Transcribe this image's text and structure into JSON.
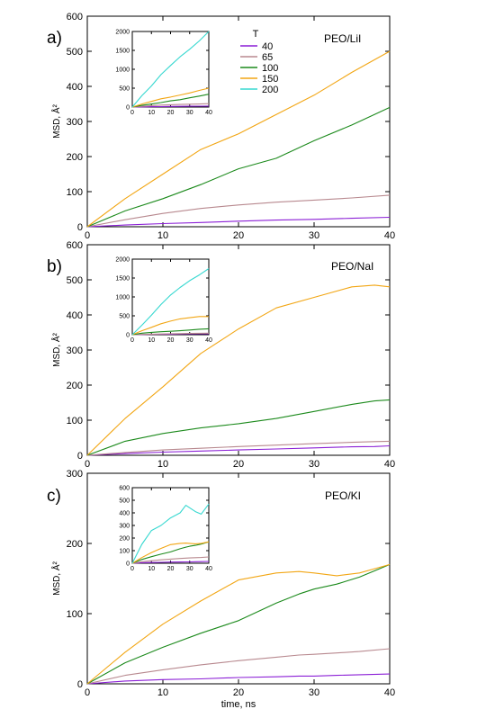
{
  "palette": {
    "T40": "#8b1fd6",
    "T65": "#b8898f",
    "T100": "#1c8a1c",
    "T150": "#f2a614",
    "T200": "#36d8d0"
  },
  "legend": {
    "title": "T",
    "entries": [
      {
        "label": "40",
        "color": "#8b1fd6"
      },
      {
        "label": "65",
        "color": "#b8898f"
      },
      {
        "label": "100",
        "color": "#1c8a1c"
      },
      {
        "label": "150",
        "color": "#f2a614"
      },
      {
        "label": "200",
        "color": "#36d8d0"
      }
    ]
  },
  "chart_data": [
    {
      "type": "line",
      "panel": "a)",
      "title": "PEO/LiI",
      "xlabel": "",
      "ylabel": "MSD, Å²",
      "xlim": [
        0,
        40
      ],
      "ylim": [
        0,
        600
      ],
      "xticks": [
        0,
        10,
        20,
        30,
        40
      ],
      "yticks": [
        0,
        100,
        200,
        300,
        400,
        500,
        600
      ],
      "x": [
        0,
        5,
        10,
        15,
        20,
        25,
        30,
        35,
        40
      ],
      "series": [
        {
          "name": "40",
          "color": "#8b1fd6",
          "values": [
            0,
            5,
            9,
            12,
            16,
            19,
            21,
            24,
            27
          ]
        },
        {
          "name": "65",
          "color": "#b8898f",
          "values": [
            0,
            20,
            38,
            52,
            62,
            70,
            76,
            82,
            90
          ]
        },
        {
          "name": "100",
          "color": "#1c8a1c",
          "values": [
            0,
            45,
            80,
            120,
            165,
            195,
            245,
            290,
            340
          ]
        },
        {
          "name": "150",
          "color": "#f2a614",
          "values": [
            0,
            80,
            150,
            220,
            265,
            320,
            375,
            440,
            500
          ]
        }
      ],
      "inset": {
        "xlim": [
          0,
          40
        ],
        "ylim": [
          0,
          2000
        ],
        "xticks": [
          0,
          10,
          20,
          30,
          40
        ],
        "yticks": [
          0,
          500,
          1000,
          1500,
          2000
        ],
        "x": [
          0,
          5,
          10,
          15,
          20,
          25,
          30,
          35,
          40
        ],
        "series": [
          {
            "name": "40",
            "color": "#8b1fd6",
            "values": [
              0,
              5,
              9,
              12,
              16,
              19,
              21,
              24,
              27
            ]
          },
          {
            "name": "65",
            "color": "#b8898f",
            "values": [
              0,
              20,
              38,
              52,
              62,
              70,
              76,
              82,
              90
            ]
          },
          {
            "name": "100",
            "color": "#1c8a1c",
            "values": [
              0,
              45,
              80,
              120,
              165,
              195,
              245,
              290,
              340
            ]
          },
          {
            "name": "150",
            "color": "#f2a614",
            "values": [
              0,
              80,
              150,
              220,
              265,
              320,
              375,
              440,
              500
            ]
          },
          {
            "name": "200",
            "color": "#36d8d0",
            "values": [
              0,
              300,
              560,
              860,
              1100,
              1330,
              1530,
              1750,
              2000
            ]
          }
        ]
      }
    },
    {
      "type": "line",
      "panel": "b)",
      "title": "PEO/NaI",
      "xlabel": "",
      "ylabel": "MSD, Å²",
      "xlim": [
        0,
        40
      ],
      "ylim": [
        0,
        600
      ],
      "xticks": [
        0,
        10,
        20,
        30,
        40
      ],
      "yticks": [
        0,
        100,
        200,
        300,
        400,
        500,
        600
      ],
      "x": [
        0,
        5,
        10,
        15,
        20,
        25,
        30,
        35,
        38,
        40
      ],
      "series": [
        {
          "name": "40",
          "color": "#8b1fd6",
          "values": [
            0,
            5,
            9,
            12,
            15,
            18,
            21,
            24,
            25,
            27
          ]
        },
        {
          "name": "65",
          "color": "#b8898f",
          "values": [
            0,
            8,
            15,
            20,
            25,
            29,
            33,
            37,
            39,
            40
          ]
        },
        {
          "name": "100",
          "color": "#1c8a1c",
          "values": [
            0,
            40,
            62,
            78,
            90,
            105,
            125,
            145,
            155,
            158
          ]
        },
        {
          "name": "150",
          "color": "#f2a614",
          "values": [
            0,
            105,
            195,
            290,
            360,
            420,
            450,
            480,
            485,
            480
          ]
        }
      ],
      "inset": {
        "xlim": [
          0,
          40
        ],
        "ylim": [
          0,
          2000
        ],
        "xticks": [
          0,
          10,
          20,
          30,
          40
        ],
        "yticks": [
          0,
          500,
          1000,
          1500,
          2000
        ],
        "x": [
          0,
          5,
          10,
          15,
          20,
          25,
          30,
          35,
          40
        ],
        "series": [
          {
            "name": "40",
            "color": "#8b1fd6",
            "values": [
              0,
              5,
              9,
              12,
              15,
              18,
              21,
              24,
              27
            ]
          },
          {
            "name": "65",
            "color": "#b8898f",
            "values": [
              0,
              8,
              15,
              20,
              25,
              29,
              33,
              37,
              40
            ]
          },
          {
            "name": "100",
            "color": "#1c8a1c",
            "values": [
              0,
              40,
              62,
              78,
              90,
              105,
              125,
              145,
              158
            ]
          },
          {
            "name": "150",
            "color": "#f2a614",
            "values": [
              0,
              105,
              195,
              290,
              360,
              420,
              450,
              480,
              480
            ]
          },
          {
            "name": "200",
            "color": "#36d8d0",
            "values": [
              0,
              250,
              520,
              800,
              1050,
              1250,
              1430,
              1580,
              1750
            ]
          }
        ]
      }
    },
    {
      "type": "line",
      "panel": "c)",
      "title": "PEO/KI",
      "xlabel": "time, ns",
      "ylabel": "MSD, Å²",
      "xlim": [
        0,
        40
      ],
      "ylim": [
        0,
        300
      ],
      "xticks": [
        0,
        10,
        20,
        30,
        40
      ],
      "yticks": [
        0,
        100,
        200,
        300
      ],
      "x": [
        0,
        5,
        10,
        15,
        20,
        25,
        28,
        30,
        33,
        36,
        40
      ],
      "series": [
        {
          "name": "40",
          "color": "#8b1fd6",
          "values": [
            0,
            4,
            6,
            7,
            9,
            10,
            11,
            11,
            12,
            13,
            14
          ]
        },
        {
          "name": "65",
          "color": "#b8898f",
          "values": [
            0,
            12,
            20,
            27,
            33,
            38,
            41,
            42,
            44,
            46,
            50
          ]
        },
        {
          "name": "100",
          "color": "#1c8a1c",
          "values": [
            0,
            30,
            52,
            72,
            90,
            115,
            128,
            135,
            142,
            152,
            170
          ]
        },
        {
          "name": "150",
          "color": "#f2a614",
          "values": [
            0,
            45,
            85,
            118,
            148,
            158,
            160,
            158,
            154,
            158,
            170
          ]
        }
      ],
      "inset": {
        "xlim": [
          0,
          40
        ],
        "ylim": [
          0,
          600
        ],
        "xticks": [
          0,
          10,
          20,
          30,
          40
        ],
        "yticks": [
          0,
          100,
          200,
          300,
          400,
          500,
          600
        ],
        "x": [
          0,
          5,
          10,
          15,
          20,
          25,
          28,
          30,
          33,
          36,
          40
        ],
        "series": [
          {
            "name": "40",
            "color": "#8b1fd6",
            "values": [
              0,
              4,
              6,
              7,
              9,
              10,
              11,
              11,
              12,
              13,
              14
            ]
          },
          {
            "name": "65",
            "color": "#b8898f",
            "values": [
              0,
              12,
              20,
              27,
              33,
              38,
              41,
              42,
              44,
              46,
              50
            ]
          },
          {
            "name": "100",
            "color": "#1c8a1c",
            "values": [
              0,
              30,
              52,
              72,
              90,
              115,
              128,
              135,
              142,
              152,
              170
            ]
          },
          {
            "name": "150",
            "color": "#f2a614",
            "values": [
              0,
              45,
              85,
              118,
              148,
              158,
              160,
              158,
              154,
              158,
              170
            ]
          },
          {
            "name": "200",
            "color": "#36d8d0",
            "values": [
              0,
              150,
              260,
              300,
              360,
              400,
              460,
              440,
              410,
              390,
              470
            ]
          }
        ]
      }
    }
  ]
}
